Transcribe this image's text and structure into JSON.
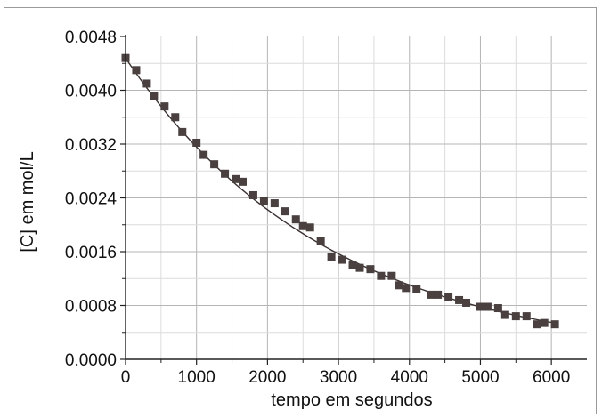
{
  "chart_data": {
    "type": "scatter",
    "xlabel": "tempo em segundos",
    "ylabel": "[C] em mol/L",
    "xlim": [
      0,
      6500
    ],
    "ylim": [
      0,
      0.0048
    ],
    "x_ticks": [
      0,
      1000,
      2000,
      3000,
      4000,
      5000,
      6000
    ],
    "x_tick_labels": [
      "0",
      "1000",
      "2000",
      "3000",
      "4000",
      "5000",
      "6000"
    ],
    "y_ticks": [
      0,
      0.0008,
      0.0016,
      0.0024,
      0.0032,
      0.004,
      0.0048
    ],
    "y_tick_labels": [
      "0.0000",
      "0.0008",
      "0.0016",
      "0.0024",
      "0.0032",
      "0.0040",
      "0.0048"
    ],
    "grid": true,
    "marker_color": "#4a4040",
    "line_color": "#3a3030",
    "series": [
      {
        "marker": "square",
        "points": [
          [
            0,
            0.00448
          ],
          [
            150,
            0.0043
          ],
          [
            300,
            0.0041
          ],
          [
            400,
            0.00392
          ],
          [
            550,
            0.00376
          ],
          [
            700,
            0.0036
          ],
          [
            800,
            0.00338
          ],
          [
            1000,
            0.00322
          ],
          [
            1100,
            0.00304
          ],
          [
            1250,
            0.0029
          ],
          [
            1400,
            0.00276
          ],
          [
            1550,
            0.00268
          ],
          [
            1650,
            0.00264
          ],
          [
            1800,
            0.00244
          ],
          [
            1950,
            0.00236
          ],
          [
            2100,
            0.00232
          ],
          [
            2250,
            0.0022
          ],
          [
            2400,
            0.00208
          ],
          [
            2500,
            0.00198
          ],
          [
            2600,
            0.00196
          ],
          [
            2750,
            0.00176
          ],
          [
            2900,
            0.00152
          ],
          [
            3050,
            0.00148
          ],
          [
            3200,
            0.0014
          ],
          [
            3300,
            0.00136
          ],
          [
            3450,
            0.00134
          ],
          [
            3600,
            0.00124
          ],
          [
            3750,
            0.00124
          ],
          [
            3850,
            0.0011
          ],
          [
            3950,
            0.00106
          ],
          [
            4100,
            0.00104
          ],
          [
            4300,
            0.00096
          ],
          [
            4400,
            0.00096
          ],
          [
            4550,
            0.00092
          ],
          [
            4700,
            0.00088
          ],
          [
            4800,
            0.00084
          ],
          [
            5000,
            0.00078
          ],
          [
            5100,
            0.00078
          ],
          [
            5250,
            0.00076
          ],
          [
            5350,
            0.00066
          ],
          [
            5500,
            0.00064
          ],
          [
            5650,
            0.00064
          ],
          [
            5800,
            0.00052
          ],
          [
            5900,
            0.00054
          ],
          [
            6050,
            0.00052
          ]
        ]
      }
    ],
    "fit_curve": {
      "type": "exponential-decay",
      "y0": 0.00448,
      "k": 0.00035,
      "x_range": [
        0,
        6000
      ]
    }
  }
}
